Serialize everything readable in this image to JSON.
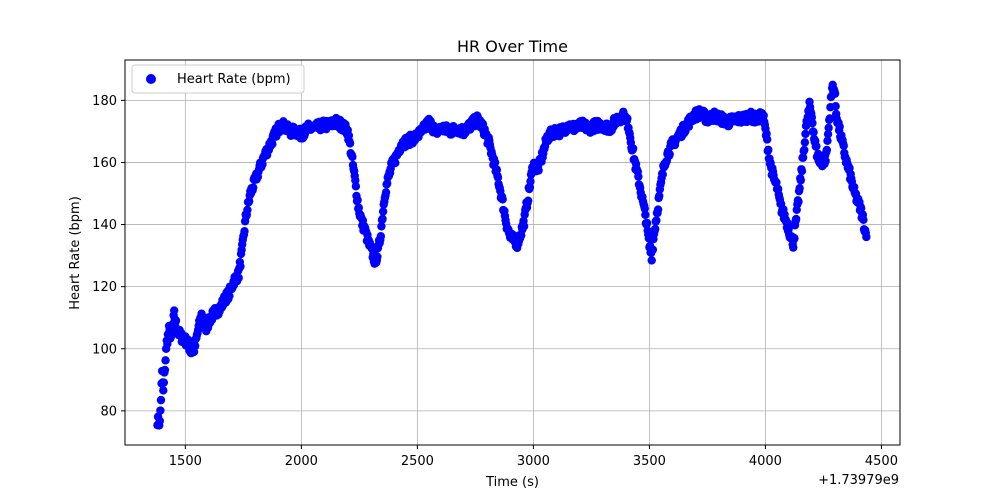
{
  "chart_data": {
    "type": "scatter",
    "title": "HR Over Time",
    "xlabel": "Time (s)",
    "ylabel": "Heart Rate (bpm)",
    "x_offset_label": "+1.73979e9",
    "xlim": [
      1240,
      4580
    ],
    "ylim": [
      69,
      193
    ],
    "x_ticks": [
      1500,
      2000,
      2500,
      3000,
      3500,
      4000,
      4500
    ],
    "x_tick_labels": [
      "1500",
      "2000",
      "2500",
      "3000",
      "3500",
      "4000",
      "4500"
    ],
    "y_ticks": [
      80,
      100,
      120,
      140,
      160,
      180
    ],
    "y_tick_labels": [
      "80",
      "100",
      "120",
      "140",
      "160",
      "180"
    ],
    "grid": true,
    "legend_position": "top-left",
    "series": [
      {
        "name": "Heart Rate (bpm)",
        "color": "#0000ff",
        "marker": "circle",
        "anchors": [
          [
            1380,
            77
          ],
          [
            1390,
            76
          ],
          [
            1400,
            92
          ],
          [
            1405,
            86
          ],
          [
            1412,
            94
          ],
          [
            1420,
            102
          ],
          [
            1430,
            106
          ],
          [
            1440,
            103
          ],
          [
            1452,
            111
          ],
          [
            1465,
            106
          ],
          [
            1480,
            104
          ],
          [
            1495,
            103
          ],
          [
            1510,
            102
          ],
          [
            1525,
            99
          ],
          [
            1540,
            100
          ],
          [
            1555,
            106
          ],
          [
            1570,
            111
          ],
          [
            1590,
            107
          ],
          [
            1610,
            110
          ],
          [
            1630,
            112
          ],
          [
            1650,
            113
          ],
          [
            1670,
            116
          ],
          [
            1690,
            118
          ],
          [
            1710,
            122
          ],
          [
            1730,
            124
          ],
          [
            1745,
            132
          ],
          [
            1760,
            142
          ],
          [
            1780,
            150
          ],
          [
            1800,
            154
          ],
          [
            1820,
            158
          ],
          [
            1840,
            162
          ],
          [
            1860,
            165
          ],
          [
            1880,
            168
          ],
          [
            1900,
            171
          ],
          [
            1920,
            172
          ],
          [
            1950,
            170
          ],
          [
            1980,
            170
          ],
          [
            2000,
            169
          ],
          [
            2030,
            171
          ],
          [
            2060,
            171
          ],
          [
            2090,
            172
          ],
          [
            2120,
            172
          ],
          [
            2150,
            173
          ],
          [
            2175,
            172
          ],
          [
            2200,
            170
          ],
          [
            2215,
            163
          ],
          [
            2230,
            155
          ],
          [
            2245,
            146
          ],
          [
            2260,
            141
          ],
          [
            2275,
            138
          ],
          [
            2290,
            134
          ],
          [
            2305,
            131
          ],
          [
            2318,
            128
          ],
          [
            2330,
            131
          ],
          [
            2340,
            136
          ],
          [
            2350,
            143
          ],
          [
            2360,
            150
          ],
          [
            2375,
            155
          ],
          [
            2390,
            159
          ],
          [
            2410,
            162
          ],
          [
            2430,
            166
          ],
          [
            2460,
            167
          ],
          [
            2490,
            168
          ],
          [
            2520,
            170
          ],
          [
            2550,
            173
          ],
          [
            2580,
            170
          ],
          [
            2610,
            171
          ],
          [
            2640,
            170
          ],
          [
            2670,
            171
          ],
          [
            2700,
            170
          ],
          [
            2730,
            172
          ],
          [
            2760,
            174
          ],
          [
            2790,
            170
          ],
          [
            2810,
            166
          ],
          [
            2830,
            160
          ],
          [
            2850,
            154
          ],
          [
            2870,
            146
          ],
          [
            2885,
            140
          ],
          [
            2900,
            136
          ],
          [
            2915,
            135
          ],
          [
            2930,
            134
          ],
          [
            2945,
            137
          ],
          [
            2960,
            141
          ],
          [
            2975,
            148
          ],
          [
            2990,
            155
          ],
          [
            3000,
            160
          ],
          [
            3015,
            157
          ],
          [
            3030,
            160
          ],
          [
            3045,
            164
          ],
          [
            3060,
            168
          ],
          [
            3090,
            170
          ],
          [
            3120,
            170
          ],
          [
            3150,
            172
          ],
          [
            3180,
            171
          ],
          [
            3210,
            172
          ],
          [
            3240,
            171
          ],
          [
            3270,
            172
          ],
          [
            3300,
            172
          ],
          [
            3330,
            171
          ],
          [
            3360,
            174
          ],
          [
            3390,
            175
          ],
          [
            3410,
            172
          ],
          [
            3425,
            165
          ],
          [
            3440,
            159
          ],
          [
            3455,
            154
          ],
          [
            3470,
            148
          ],
          [
            3485,
            142
          ],
          [
            3500,
            133
          ],
          [
            3510,
            130
          ],
          [
            3520,
            137
          ],
          [
            3535,
            145
          ],
          [
            3550,
            153
          ],
          [
            3565,
            160
          ],
          [
            3580,
            163
          ],
          [
            3600,
            166
          ],
          [
            3630,
            169
          ],
          [
            3660,
            172
          ],
          [
            3690,
            175
          ],
          [
            3720,
            176
          ],
          [
            3750,
            174
          ],
          [
            3780,
            175
          ],
          [
            3810,
            174
          ],
          [
            3840,
            173
          ],
          [
            3870,
            174
          ],
          [
            3900,
            174
          ],
          [
            3930,
            175
          ],
          [
            3960,
            174
          ],
          [
            3990,
            175
          ],
          [
            4005,
            168
          ],
          [
            4020,
            160
          ],
          [
            4035,
            155
          ],
          [
            4050,
            152
          ],
          [
            4065,
            146
          ],
          [
            4080,
            143
          ],
          [
            4095,
            140
          ],
          [
            4110,
            136
          ],
          [
            4120,
            134
          ],
          [
            4130,
            140
          ],
          [
            4145,
            150
          ],
          [
            4160,
            160
          ],
          [
            4175,
            171
          ],
          [
            4190,
            178
          ],
          [
            4200,
            175
          ],
          [
            4210,
            168
          ],
          [
            4222,
            163
          ],
          [
            4235,
            160
          ],
          [
            4250,
            160
          ],
          [
            4262,
            162
          ],
          [
            4270,
            169
          ],
          [
            4280,
            178
          ],
          [
            4290,
            185
          ],
          [
            4298,
            183
          ],
          [
            4305,
            176
          ],
          [
            4320,
            170
          ],
          [
            4335,
            165
          ],
          [
            4350,
            160
          ],
          [
            4365,
            156
          ],
          [
            4380,
            151
          ],
          [
            4395,
            148
          ],
          [
            4410,
            145
          ],
          [
            4420,
            142
          ],
          [
            4435,
            136
          ]
        ]
      }
    ]
  }
}
